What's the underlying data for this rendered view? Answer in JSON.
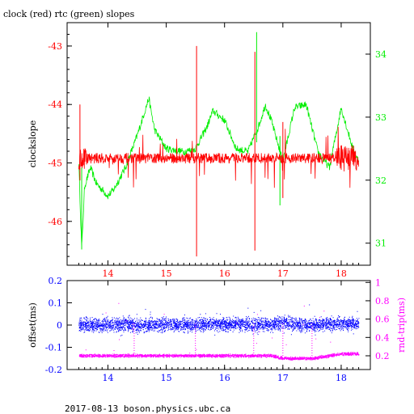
{
  "title": "clock (red) rtc (green) slopes",
  "footer": "2017-08-13 boson.physics.ubc.ca",
  "colors": {
    "clock": "#ff0000",
    "rtc": "#00ee00",
    "offset": "#0000ff",
    "rndtrip": "#ff00ff",
    "axis": "#000000"
  },
  "chart_data": [
    {
      "type": "line",
      "title": "clock (red) rtc (green) slopes",
      "xlabel": "",
      "ylabel": "clockslope",
      "y2label": "",
      "xlim": [
        13.3,
        18.5
      ],
      "ylim": [
        -46.75,
        -42.6
      ],
      "y2lim": [
        30.65,
        34.5
      ],
      "xticks": [
        "14",
        "15",
        "16",
        "17",
        "18"
      ],
      "yticks": [
        "-43",
        "-44",
        "-45",
        "-46"
      ],
      "y2ticks": [
        "31",
        "32",
        "33",
        "34"
      ],
      "series": [
        {
          "name": "clock (red)",
          "axis": "left",
          "x": [
            13.5,
            13.55,
            13.6,
            13.8,
            14.0,
            14.2,
            14.5,
            14.8,
            15.0,
            15.3,
            15.5,
            15.52,
            15.55,
            15.8,
            16.0,
            16.3,
            16.5,
            16.52,
            16.55,
            16.8,
            17.0,
            17.2,
            17.5,
            17.8,
            18.0,
            18.2,
            18.3
          ],
          "y": [
            -44.85,
            -44.0,
            -45.1,
            -44.9,
            -44.9,
            -44.85,
            -44.95,
            -44.9,
            -44.92,
            -44.9,
            -44.95,
            -43.0,
            -46.6,
            -44.95,
            -44.9,
            -44.95,
            -44.95,
            -43.1,
            -46.5,
            -44.9,
            -44.9,
            -44.95,
            -44.95,
            -44.9,
            -44.85,
            -45.0,
            -44.95
          ]
        },
        {
          "name": "rtc (green)",
          "axis": "right",
          "x": [
            13.5,
            13.55,
            13.6,
            13.7,
            13.8,
            14.0,
            14.1,
            14.3,
            14.5,
            14.6,
            14.7,
            14.8,
            15.0,
            15.3,
            15.5,
            15.7,
            15.8,
            16.0,
            16.2,
            16.4,
            16.6,
            16.7,
            16.8,
            17.0,
            17.2,
            17.4,
            17.6,
            17.8,
            18.0,
            18.2,
            18.3
          ],
          "y": [
            32.3,
            30.9,
            31.9,
            32.2,
            31.95,
            31.75,
            31.85,
            32.2,
            32.7,
            33.0,
            33.3,
            32.8,
            32.5,
            32.45,
            32.5,
            32.85,
            33.1,
            32.95,
            32.5,
            32.45,
            32.9,
            33.2,
            32.95,
            32.3,
            33.15,
            33.2,
            32.45,
            32.2,
            33.15,
            32.5,
            32.3
          ]
        }
      ]
    },
    {
      "type": "scatter",
      "xlabel": "",
      "ylabel": "offset(ms)",
      "y2label": "rnd-trip(ms)",
      "xlim": [
        13.3,
        18.5
      ],
      "ylim": [
        -0.2,
        0.2
      ],
      "y2lim": [
        0.05,
        1.02
      ],
      "xticks": [
        "14",
        "15",
        "16",
        "17",
        "18"
      ],
      "yticks": [
        "0.2",
        "0.1",
        "0",
        "-0.1",
        "-0.2"
      ],
      "y2ticks": [
        "1",
        "0.8",
        "0.6",
        "0.4",
        "0.2"
      ],
      "series": [
        {
          "name": "offset",
          "axis": "left",
          "x": [
            13.5,
            13.8,
            14.0,
            14.3,
            14.5,
            14.8,
            15.0,
            15.3,
            15.5,
            15.8,
            16.0,
            16.3,
            16.5,
            16.8,
            17.0,
            17.3,
            17.5,
            17.8,
            18.0,
            18.3
          ],
          "y": [
            0.0,
            0.0,
            0.0,
            0.005,
            0.0,
            0.0,
            0.005,
            0.0,
            0.0,
            0.005,
            0.0,
            0.005,
            0.0,
            0.0,
            0.01,
            0.0,
            0.0,
            0.005,
            0.005,
            0.005
          ]
        },
        {
          "name": "rnd-trip",
          "axis": "right",
          "x": [
            13.5,
            13.8,
            14.0,
            14.3,
            14.5,
            14.8,
            15.0,
            15.3,
            15.5,
            15.8,
            16.0,
            16.3,
            16.5,
            16.8,
            17.0,
            17.3,
            17.5,
            17.8,
            18.0,
            18.3
          ],
          "y": [
            0.2,
            0.2,
            0.2,
            0.2,
            0.2,
            0.2,
            0.2,
            0.2,
            0.2,
            0.2,
            0.2,
            0.2,
            0.2,
            0.2,
            0.17,
            0.17,
            0.17,
            0.2,
            0.22,
            0.22
          ]
        }
      ]
    }
  ]
}
